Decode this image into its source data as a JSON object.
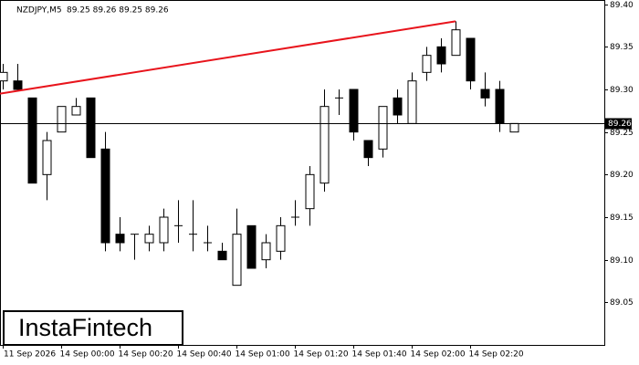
{
  "chart_data": {
    "type": "candlestick",
    "title": "NZDJPY,M5",
    "ohlc_text": "89.25 89.26 89.25 89.26",
    "watermark": "InstaFintech",
    "categories": [
      "11 Sep 2026",
      null,
      null,
      null,
      "14 Sep 00:00",
      null,
      null,
      null,
      "14 Sep 00:20",
      null,
      null,
      null,
      "14 Sep 00:40",
      null,
      null,
      null,
      "14 Sep 01:00",
      null,
      null,
      null,
      "14 Sep 01:20",
      null,
      null,
      null,
      "14 Sep 01:40",
      null,
      null,
      null,
      "14 Sep 02:00",
      null,
      null,
      null,
      "14 Sep 02:20",
      null,
      null,
      null
    ],
    "open": [
      89.31,
      89.31,
      89.29,
      89.2,
      89.25,
      89.27,
      89.29,
      89.23,
      89.13,
      89.13,
      89.12,
      89.12,
      89.14,
      89.13,
      89.12,
      89.11,
      89.07,
      89.14,
      89.1,
      89.11,
      89.15,
      89.16,
      89.19,
      89.29,
      89.3,
      89.24,
      89.23,
      89.29,
      89.26,
      89.32,
      89.35,
      89.34,
      89.36,
      89.3,
      89.3,
      89.25
    ],
    "high": [
      89.33,
      89.33,
      89.29,
      89.25,
      89.28,
      89.29,
      89.29,
      89.25,
      89.15,
      89.13,
      89.14,
      89.16,
      89.17,
      89.17,
      89.14,
      89.12,
      89.16,
      89.14,
      89.13,
      89.15,
      89.17,
      89.21,
      89.3,
      89.3,
      89.3,
      89.24,
      89.28,
      89.3,
      89.32,
      89.35,
      89.36,
      89.38,
      89.36,
      89.32,
      89.31,
      89.26
    ],
    "low": [
      89.3,
      89.3,
      89.19,
      89.17,
      89.25,
      89.27,
      89.22,
      89.11,
      89.11,
      89.1,
      89.11,
      89.11,
      89.12,
      89.11,
      89.11,
      89.1,
      89.07,
      89.09,
      89.09,
      89.1,
      89.14,
      89.14,
      89.18,
      89.27,
      89.24,
      89.21,
      89.22,
      89.26,
      89.26,
      89.31,
      89.32,
      89.34,
      89.3,
      89.28,
      89.25,
      89.25
    ],
    "close": [
      89.32,
      89.3,
      89.19,
      89.24,
      89.28,
      89.28,
      89.22,
      89.12,
      89.12,
      89.13,
      89.13,
      89.15,
      89.14,
      89.13,
      89.12,
      89.1,
      89.13,
      89.09,
      89.12,
      89.14,
      89.15,
      89.2,
      89.28,
      89.29,
      89.25,
      89.22,
      89.28,
      89.27,
      89.31,
      89.34,
      89.33,
      89.37,
      89.31,
      89.29,
      89.26,
      89.26
    ],
    "up_color": "#ffffff",
    "down_color": "#000000",
    "ylim": [
      89.0,
      89.405
    ],
    "yticks": [
      89.05,
      {
        "value": 89.1,
        "label": "89.10"
      },
      89.15,
      {
        "value": 89.2,
        "label": "89.20"
      },
      89.25,
      {
        "value": 89.3,
        "label": "89.30"
      },
      89.35,
      {
        "value": 89.4,
        "label": "89.40"
      }
    ],
    "current_price": 89.26,
    "trendline": {
      "color": "#e8141c",
      "start_index": 0,
      "start_value": 89.295,
      "end_index": 31,
      "end_value": 89.38
    }
  }
}
